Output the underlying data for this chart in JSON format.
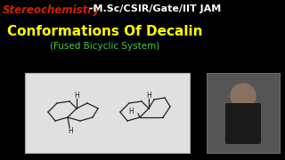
{
  "bg_color": "#000000",
  "title_stereo": "Stereochemistry",
  "title_stereo_color": "#cc2200",
  "title_rest": " -M.Sc/CSIR/Gate/IIT JAM",
  "title_rest_color": "#ffffff",
  "main_title": "Conformations Of Decalin",
  "main_title_color": "#ffff00",
  "subtitle": "(Fused Bicyclic System)",
  "subtitle_color": "#44cc44",
  "box_facecolor": "#e0e0e0",
  "box_edgecolor": "#aaaaaa",
  "mol_color": "#222222",
  "photo_bg": "#555555"
}
